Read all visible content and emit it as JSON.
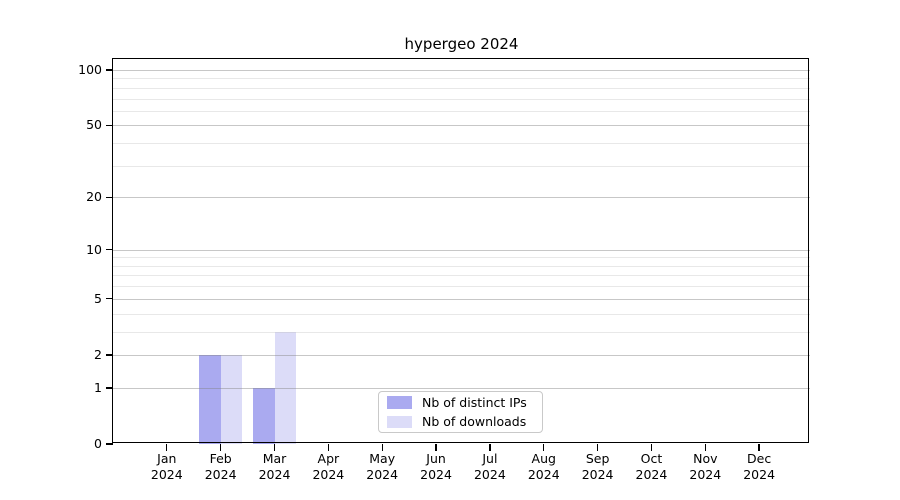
{
  "title": "hypergeo 2024",
  "chart_data": {
    "type": "bar",
    "title": "hypergeo 2024",
    "x_axis": {
      "months": [
        "Jan",
        "Feb",
        "Mar",
        "Apr",
        "May",
        "Jun",
        "Jul",
        "Aug",
        "Sep",
        "Oct",
        "Nov",
        "Dec"
      ],
      "year": "2024"
    },
    "y_axis": {
      "scale": "log1p",
      "ticks": [
        0,
        1,
        2,
        5,
        10,
        20,
        50,
        100
      ],
      "minor_gridlines": [
        3,
        4,
        6,
        7,
        8,
        9,
        30,
        40,
        60,
        70,
        80,
        90
      ],
      "ylim": [
        0,
        115
      ]
    },
    "series": [
      {
        "name": "Nb of distinct IPs",
        "color": "#aaaaf0",
        "values": [
          0,
          2,
          1,
          0,
          0,
          0,
          0,
          0,
          0,
          0,
          0,
          0
        ]
      },
      {
        "name": "Nb of downloads",
        "color": "#dcdcf8",
        "values": [
          0,
          2,
          3,
          0,
          0,
          0,
          0,
          0,
          0,
          0,
          0,
          0
        ]
      }
    ],
    "legend_position": "bottom-center",
    "grid": true
  }
}
